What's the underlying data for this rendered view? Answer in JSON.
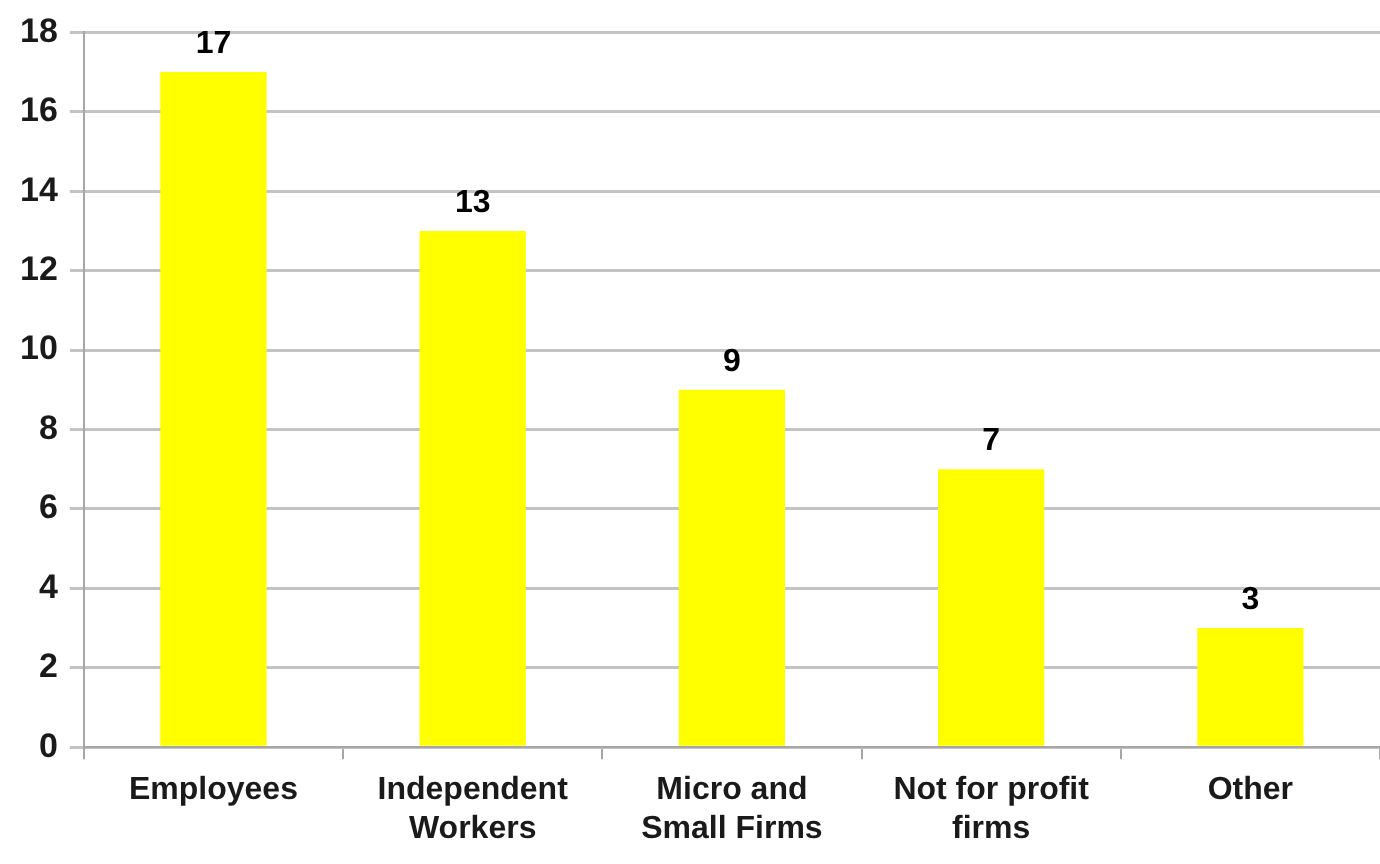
{
  "chart_data": {
    "type": "bar",
    "categories": [
      "Employees",
      "Independent Workers",
      "Micro and Small Firms",
      "Not for profit firms",
      "Other"
    ],
    "values": [
      17,
      13,
      9,
      7,
      3
    ],
    "color": "#ffff00",
    "ylim": [
      0,
      18
    ],
    "yticks": [
      0,
      2,
      4,
      6,
      8,
      10,
      12,
      14,
      16,
      18
    ],
    "grid": "y",
    "legend": false,
    "data_labels": true
  }
}
